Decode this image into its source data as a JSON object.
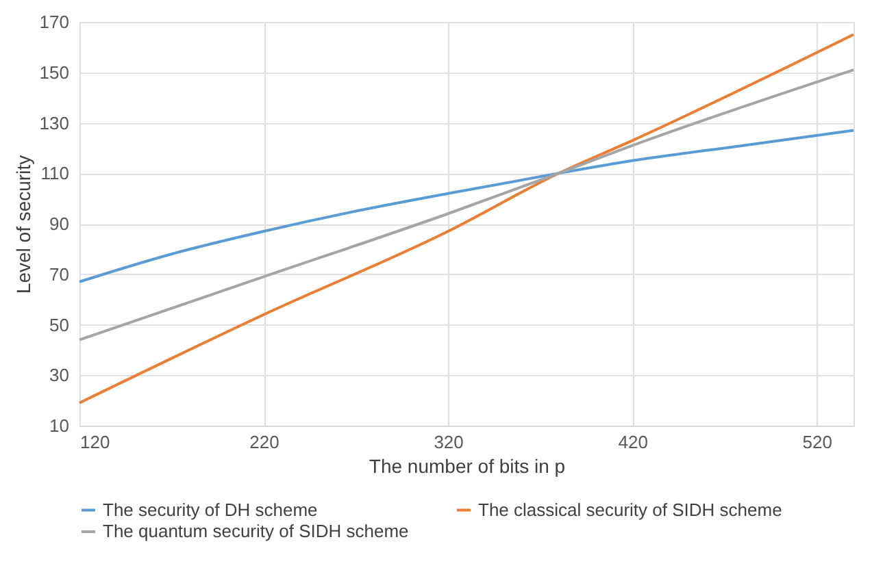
{
  "chart_data": {
    "type": "line",
    "xlabel": "The number of bits in p",
    "ylabel": "Level of security",
    "xlim": [
      120,
      540
    ],
    "xticks": [
      120,
      220,
      320,
      420,
      520
    ],
    "ylim": [
      10,
      170
    ],
    "yticks": [
      10,
      30,
      50,
      70,
      90,
      110,
      130,
      150,
      170
    ],
    "grid": true,
    "legend": "bottom",
    "marker": "none",
    "line_style": "solid",
    "series": [
      {
        "name": "The security of DH scheme",
        "color": "#5b9bd5",
        "x": [
          120,
          170,
          220,
          270,
          320,
          380,
          420,
          480,
          540
        ],
        "values": [
          67,
          78,
          87,
          95,
          102,
          110,
          115,
          121,
          127
        ]
      },
      {
        "name": "The classical security of SIDH scheme",
        "color": "#ed7d31",
        "x": [
          120,
          220,
          320,
          380,
          420,
          540
        ],
        "values": [
          19,
          54,
          87,
          110,
          123,
          165
        ]
      },
      {
        "name": "The quantum security of SIDH scheme",
        "color": "#a5a5a5",
        "x": [
          120,
          220,
          320,
          380,
          420,
          540
        ],
        "values": [
          44,
          69,
          94,
          110,
          121,
          151
        ]
      }
    ]
  }
}
